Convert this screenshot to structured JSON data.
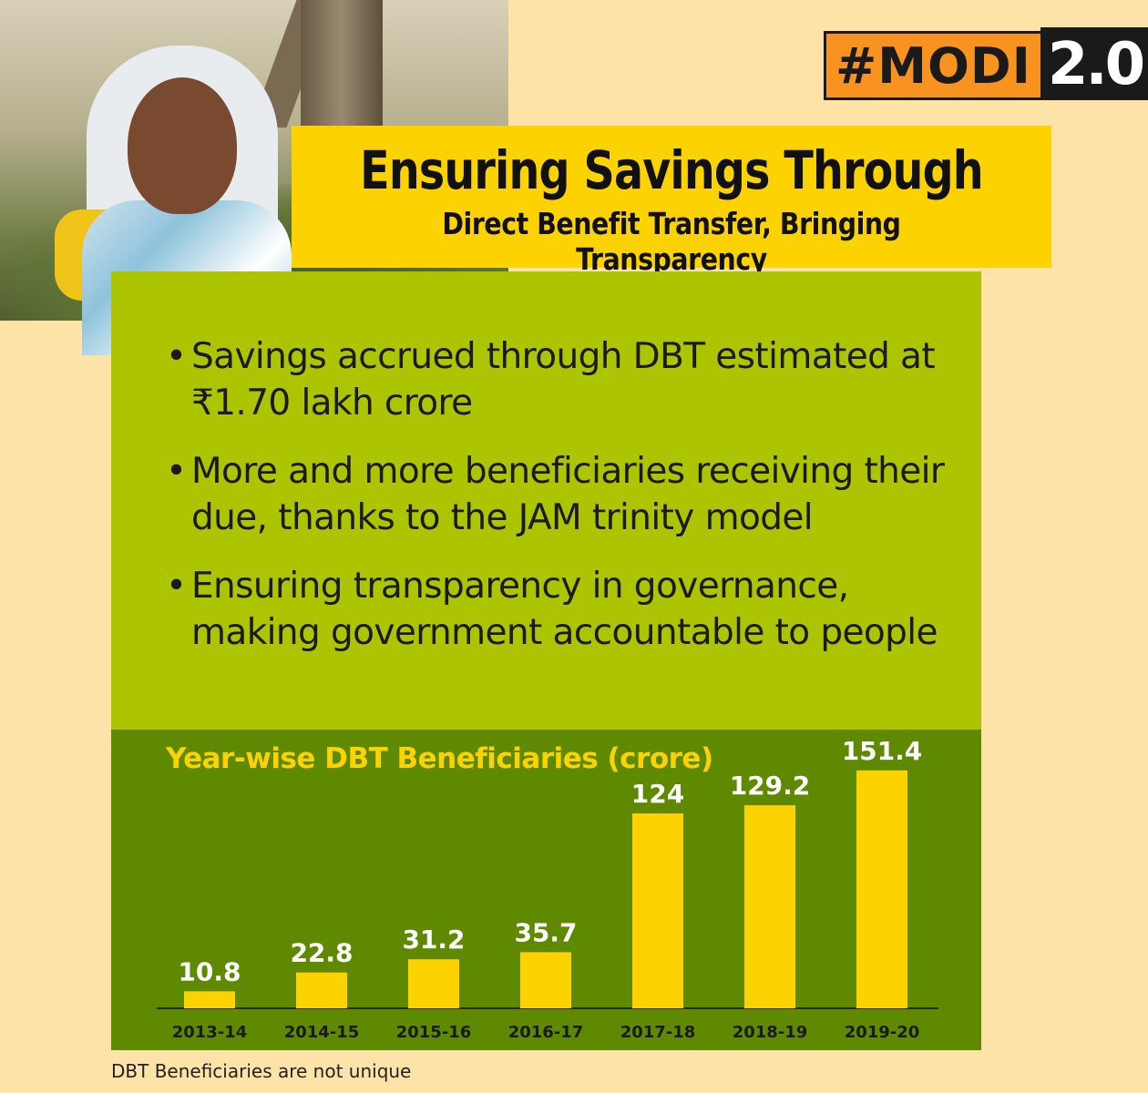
{
  "hashtag": {
    "text": "#MODI",
    "version": "2.0"
  },
  "title": {
    "main": "Ensuring Savings Through",
    "sub": "Direct Benefit Transfer, Bringing Transparency"
  },
  "bullets": [
    "Savings accrued through DBT estimated at ₹1.70 lakh crore",
    "More and more beneficiaries receiving their due, thanks to the JAM trinity model",
    "Ensuring transparency in governance, making government accountable to people"
  ],
  "bullet_glyph": "•",
  "footnote": "DBT Beneficiaries are not unique",
  "colors": {
    "background": "#fde3a7",
    "title_box": "#fcd301",
    "bullet_panel": "#adc401",
    "chart_panel": "#5f8a00",
    "bars": "#fcd301",
    "badge_orange": "#f7931e"
  },
  "chart_data": {
    "type": "bar",
    "title": "Year-wise DBT Beneficiaries (crore)",
    "categories": [
      "2013-14",
      "2014-15",
      "2015-16",
      "2016-17",
      "2017-18",
      "2018-19",
      "2019-20"
    ],
    "values": [
      10.8,
      22.8,
      31.2,
      35.7,
      124,
      129.2,
      151.4
    ],
    "value_labels": [
      "10.8",
      "22.8",
      "31.2",
      "35.7",
      "124",
      "129.2",
      "151.4"
    ],
    "ylim": [
      0,
      160
    ],
    "grid": false,
    "legend": "none"
  }
}
